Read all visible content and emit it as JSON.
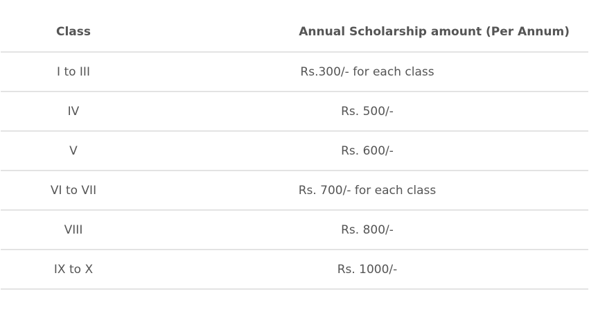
{
  "table": {
    "headers": {
      "class": "Class",
      "amount": "Annual Scholarship amount (Per Annum)"
    },
    "rows": [
      {
        "class": "I to III",
        "amount": "Rs.300/- for each class"
      },
      {
        "class": "IV",
        "amount": "Rs. 500/-"
      },
      {
        "class": "V",
        "amount": "Rs. 600/-"
      },
      {
        "class": "VI to VII",
        "amount": "Rs. 700/- for each class"
      },
      {
        "class": "VIII",
        "amount": "Rs. 800/-"
      },
      {
        "class": "IX to X",
        "amount": "Rs. 1000/-"
      }
    ]
  }
}
